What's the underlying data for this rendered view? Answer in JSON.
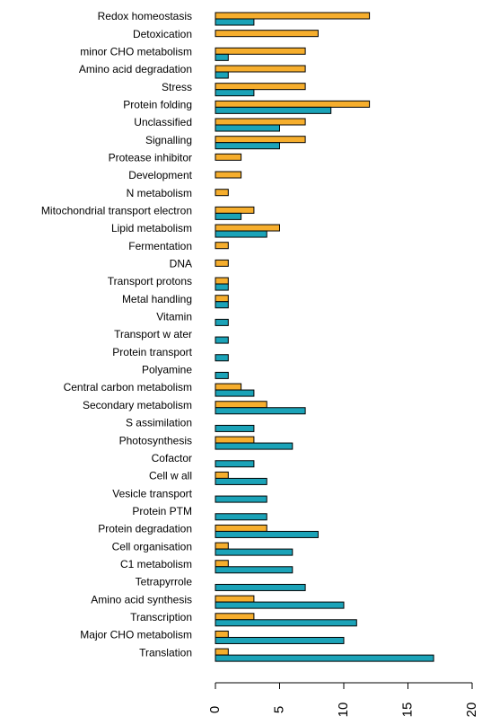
{
  "chart_data": {
    "type": "bar",
    "orientation": "horizontal",
    "categories": [
      "Redox homeostasis",
      "Detoxication",
      "minor CHO metabolism",
      "Amino acid degradation",
      "Stress",
      "Protein folding",
      "Unclassified",
      "Signalling",
      "Protease inhibitor",
      "Development",
      "N metabolism",
      "Mitochondrial transport electron",
      "Lipid metabolism",
      "Fermentation",
      "DNA",
      "Transport protons",
      "Metal handling",
      "Vitamin",
      "Transport w ater",
      "Protein transport",
      "Polyamine",
      "Central carbon metabolism",
      "Secondary metabolism",
      "S assimilation",
      "Photosynthesis",
      "Cofactor",
      "Cell w all",
      "Vesicle transport",
      "Protein PTM",
      "Protein degradation",
      "Cell organisation",
      "C1 metabolism",
      "Tetrapyrrole",
      "Amino acid synthesis",
      "Transcription",
      "Major CHO metabolism",
      "Translation"
    ],
    "series": [
      {
        "color": "#f6ae2d",
        "values": [
          12,
          8,
          7,
          7,
          7,
          12,
          7,
          7,
          2,
          2,
          1,
          3,
          5,
          1,
          1,
          1,
          1,
          0,
          0,
          0,
          0,
          2,
          4,
          0,
          3,
          0,
          1,
          0,
          0,
          4,
          1,
          1,
          0,
          3,
          3,
          1,
          1
        ]
      },
      {
        "color": "#1ba3b8",
        "values": [
          3,
          0,
          1,
          1,
          3,
          9,
          5,
          5,
          0,
          0,
          0,
          2,
          4,
          0,
          0,
          1,
          1,
          1,
          1,
          1,
          1,
          3,
          7,
          3,
          6,
          3,
          4,
          4,
          4,
          8,
          6,
          6,
          7,
          10,
          11,
          10,
          17
        ]
      }
    ],
    "xlim": [
      0,
      20
    ],
    "xticks": [
      0,
      5,
      10,
      15,
      20
    ]
  }
}
